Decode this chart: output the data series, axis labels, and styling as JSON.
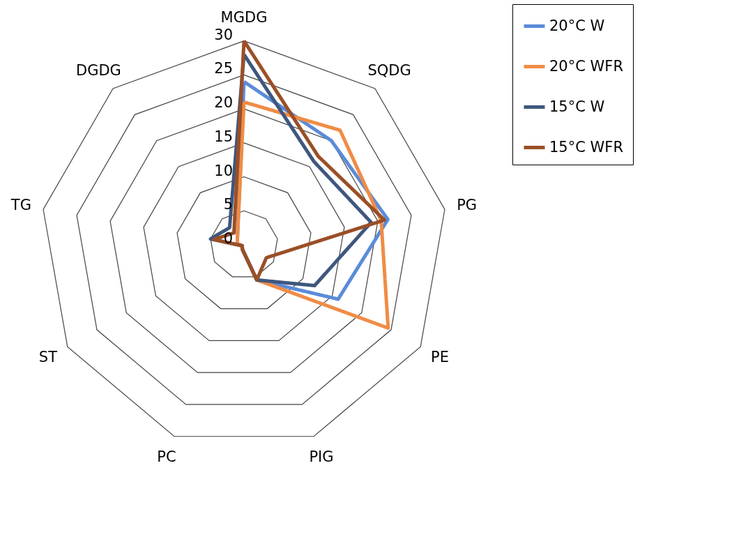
{
  "chart_data": {
    "type": "radar",
    "categories": [
      "MGDG",
      "SQDG",
      "PG",
      "PE",
      "PIG",
      "PC",
      "ST",
      "TG",
      "DGDG"
    ],
    "series": [
      {
        "name": "20°C W",
        "color": "#5b8bd9",
        "values": [
          24,
          20,
          21.5,
          16,
          5.5,
          0.7,
          0.3,
          1,
          1.5
        ]
      },
      {
        "name": "20°C WFR",
        "color": "#f08c45",
        "values": [
          21,
          22,
          20.5,
          24.5,
          5.5,
          0.7,
          0.3,
          1,
          1.5
        ]
      },
      {
        "name": "15°C W",
        "color": "#3f577e",
        "values": [
          28,
          16,
          19,
          12,
          5.5,
          0.7,
          0.3,
          5,
          3.3
        ]
      },
      {
        "name": "15°C WFR",
        "color": "#9a4f26",
        "values": [
          30,
          17,
          21,
          3.8,
          5.5,
          0.7,
          0.3,
          4.5,
          2.3
        ]
      }
    ],
    "ylim": [
      0,
      30
    ],
    "yticks": [
      0,
      5,
      10,
      15,
      20,
      25,
      30
    ],
    "grid": true,
    "legend": "right",
    "line_style": "solid"
  }
}
